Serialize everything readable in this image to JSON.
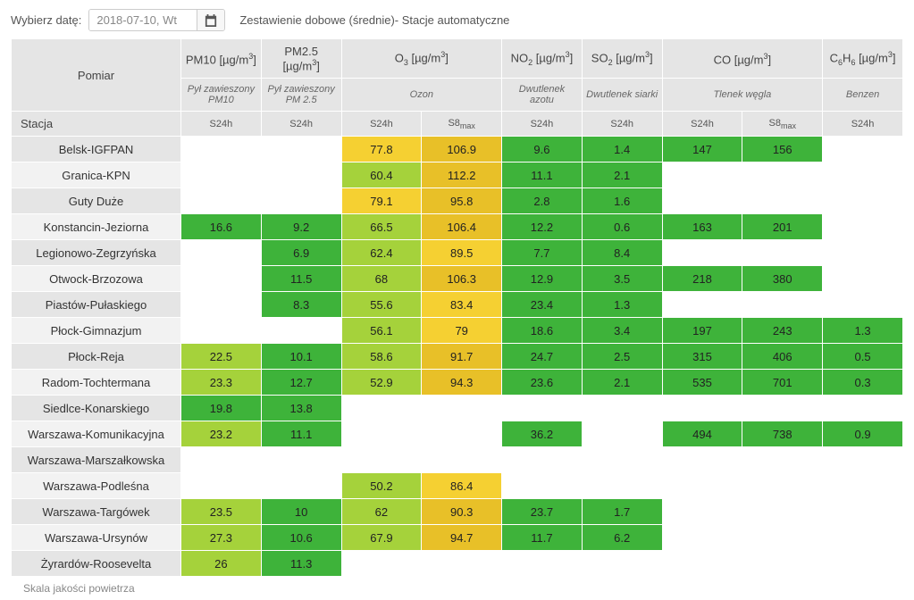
{
  "top": {
    "label": "Wybierz datę:",
    "date_value": "2018-07-10, Wt",
    "title": "Zestawienie dobowe (średnie)- Stacje automatyczne"
  },
  "header": {
    "corner_top": "Pomiar",
    "corner_bottom": "Stacja",
    "cols": [
      {
        "main": "PM10 [µg/m³]",
        "sub": "Pył zawieszony PM10",
        "periods": [
          "S24h"
        ],
        "split": false
      },
      {
        "main": "PM2.5 [µg/m³]",
        "sub": "Pył zawieszony PM 2.5",
        "periods": [
          "S24h"
        ],
        "split": false
      },
      {
        "main": "O₃ [µg/m³]",
        "sub": "Ozon",
        "periods": [
          "S24h",
          "S8max"
        ],
        "split": true
      },
      {
        "main": "NO₂ [µg/m³]",
        "sub": "Dwutlenek azotu",
        "periods": [
          "S24h"
        ],
        "split": false
      },
      {
        "main": "SO₂ [µg/m³]",
        "sub": "Dwutlenek siarki",
        "periods": [
          "S24h"
        ],
        "split": false
      },
      {
        "main": "CO [µg/m³]",
        "sub": "Tlenek węgla",
        "periods": [
          "S24h",
          "S8max"
        ],
        "split": true
      },
      {
        "main": "C₆H₆ [µg/m³]",
        "sub": "Benzen",
        "periods": [
          "S24h"
        ],
        "split": false
      }
    ]
  },
  "colors": {
    "empty": "#ffffff",
    "green_dark": "#3eb33a",
    "green_light": "#a5d23b",
    "yellow": "#f5d032",
    "yellow_dark": "#e8c028",
    "orange": "#e8b830"
  },
  "rows": [
    {
      "station": "Belsk-IGFPAN",
      "cells": [
        {
          "v": "",
          "c": "empty"
        },
        {
          "v": "",
          "c": "empty"
        },
        {
          "v": "77.8",
          "c": "yellow"
        },
        {
          "v": "106.9",
          "c": "yellow_dark"
        },
        {
          "v": "9.6",
          "c": "green_dark"
        },
        {
          "v": "1.4",
          "c": "green_dark"
        },
        {
          "v": "147",
          "c": "green_dark"
        },
        {
          "v": "156",
          "c": "green_dark"
        },
        {
          "v": "",
          "c": "empty"
        }
      ]
    },
    {
      "station": "Granica-KPN",
      "cells": [
        {
          "v": "",
          "c": "empty"
        },
        {
          "v": "",
          "c": "empty"
        },
        {
          "v": "60.4",
          "c": "green_light"
        },
        {
          "v": "112.2",
          "c": "yellow_dark"
        },
        {
          "v": "11.1",
          "c": "green_dark"
        },
        {
          "v": "2.1",
          "c": "green_dark"
        },
        {
          "v": "",
          "c": "empty"
        },
        {
          "v": "",
          "c": "empty"
        },
        {
          "v": "",
          "c": "empty"
        }
      ]
    },
    {
      "station": "Guty Duże",
      "cells": [
        {
          "v": "",
          "c": "empty"
        },
        {
          "v": "",
          "c": "empty"
        },
        {
          "v": "79.1",
          "c": "yellow"
        },
        {
          "v": "95.8",
          "c": "yellow_dark"
        },
        {
          "v": "2.8",
          "c": "green_dark"
        },
        {
          "v": "1.6",
          "c": "green_dark"
        },
        {
          "v": "",
          "c": "empty"
        },
        {
          "v": "",
          "c": "empty"
        },
        {
          "v": "",
          "c": "empty"
        }
      ]
    },
    {
      "station": "Konstancin-Jeziorna",
      "cells": [
        {
          "v": "16.6",
          "c": "green_dark"
        },
        {
          "v": "9.2",
          "c": "green_dark"
        },
        {
          "v": "66.5",
          "c": "green_light"
        },
        {
          "v": "106.4",
          "c": "yellow_dark"
        },
        {
          "v": "12.2",
          "c": "green_dark"
        },
        {
          "v": "0.6",
          "c": "green_dark"
        },
        {
          "v": "163",
          "c": "green_dark"
        },
        {
          "v": "201",
          "c": "green_dark"
        },
        {
          "v": "",
          "c": "empty"
        }
      ]
    },
    {
      "station": "Legionowo-Zegrzyńska",
      "cells": [
        {
          "v": "",
          "c": "empty"
        },
        {
          "v": "6.9",
          "c": "green_dark"
        },
        {
          "v": "62.4",
          "c": "green_light"
        },
        {
          "v": "89.5",
          "c": "yellow"
        },
        {
          "v": "7.7",
          "c": "green_dark"
        },
        {
          "v": "8.4",
          "c": "green_dark"
        },
        {
          "v": "",
          "c": "empty"
        },
        {
          "v": "",
          "c": "empty"
        },
        {
          "v": "",
          "c": "empty"
        }
      ]
    },
    {
      "station": "Otwock-Brzozowa",
      "cells": [
        {
          "v": "",
          "c": "empty"
        },
        {
          "v": "11.5",
          "c": "green_dark"
        },
        {
          "v": "68",
          "c": "green_light"
        },
        {
          "v": "106.3",
          "c": "yellow_dark"
        },
        {
          "v": "12.9",
          "c": "green_dark"
        },
        {
          "v": "3.5",
          "c": "green_dark"
        },
        {
          "v": "218",
          "c": "green_dark"
        },
        {
          "v": "380",
          "c": "green_dark"
        },
        {
          "v": "",
          "c": "empty"
        }
      ]
    },
    {
      "station": "Piastów-Pułaskiego",
      "cells": [
        {
          "v": "",
          "c": "empty"
        },
        {
          "v": "8.3",
          "c": "green_dark"
        },
        {
          "v": "55.6",
          "c": "green_light"
        },
        {
          "v": "83.4",
          "c": "yellow"
        },
        {
          "v": "23.4",
          "c": "green_dark"
        },
        {
          "v": "1.3",
          "c": "green_dark"
        },
        {
          "v": "",
          "c": "empty"
        },
        {
          "v": "",
          "c": "empty"
        },
        {
          "v": "",
          "c": "empty"
        }
      ]
    },
    {
      "station": "Płock-Gimnazjum",
      "cells": [
        {
          "v": "",
          "c": "empty"
        },
        {
          "v": "",
          "c": "empty"
        },
        {
          "v": "56.1",
          "c": "green_light"
        },
        {
          "v": "79",
          "c": "yellow"
        },
        {
          "v": "18.6",
          "c": "green_dark"
        },
        {
          "v": "3.4",
          "c": "green_dark"
        },
        {
          "v": "197",
          "c": "green_dark"
        },
        {
          "v": "243",
          "c": "green_dark"
        },
        {
          "v": "1.3",
          "c": "green_dark"
        }
      ]
    },
    {
      "station": "Płock-Reja",
      "cells": [
        {
          "v": "22.5",
          "c": "green_light"
        },
        {
          "v": "10.1",
          "c": "green_dark"
        },
        {
          "v": "58.6",
          "c": "green_light"
        },
        {
          "v": "91.7",
          "c": "yellow_dark"
        },
        {
          "v": "24.7",
          "c": "green_dark"
        },
        {
          "v": "2.5",
          "c": "green_dark"
        },
        {
          "v": "315",
          "c": "green_dark"
        },
        {
          "v": "406",
          "c": "green_dark"
        },
        {
          "v": "0.5",
          "c": "green_dark"
        }
      ]
    },
    {
      "station": "Radom-Tochtermana",
      "cells": [
        {
          "v": "23.3",
          "c": "green_light"
        },
        {
          "v": "12.7",
          "c": "green_dark"
        },
        {
          "v": "52.9",
          "c": "green_light"
        },
        {
          "v": "94.3",
          "c": "yellow_dark"
        },
        {
          "v": "23.6",
          "c": "green_dark"
        },
        {
          "v": "2.1",
          "c": "green_dark"
        },
        {
          "v": "535",
          "c": "green_dark"
        },
        {
          "v": "701",
          "c": "green_dark"
        },
        {
          "v": "0.3",
          "c": "green_dark"
        }
      ]
    },
    {
      "station": "Siedlce-Konarskiego",
      "cells": [
        {
          "v": "19.8",
          "c": "green_dark"
        },
        {
          "v": "13.8",
          "c": "green_dark"
        },
        {
          "v": "",
          "c": "empty"
        },
        {
          "v": "",
          "c": "empty"
        },
        {
          "v": "",
          "c": "empty"
        },
        {
          "v": "",
          "c": "empty"
        },
        {
          "v": "",
          "c": "empty"
        },
        {
          "v": "",
          "c": "empty"
        },
        {
          "v": "",
          "c": "empty"
        }
      ]
    },
    {
      "station": "Warszawa-Komunikacyjna",
      "cells": [
        {
          "v": "23.2",
          "c": "green_light"
        },
        {
          "v": "11.1",
          "c": "green_dark"
        },
        {
          "v": "",
          "c": "empty"
        },
        {
          "v": "",
          "c": "empty"
        },
        {
          "v": "36.2",
          "c": "green_dark"
        },
        {
          "v": "",
          "c": "empty"
        },
        {
          "v": "494",
          "c": "green_dark"
        },
        {
          "v": "738",
          "c": "green_dark"
        },
        {
          "v": "0.9",
          "c": "green_dark"
        }
      ]
    },
    {
      "station": "Warszawa-Marszałkowska",
      "cells": [
        {
          "v": "",
          "c": "empty"
        },
        {
          "v": "",
          "c": "empty"
        },
        {
          "v": "",
          "c": "empty"
        },
        {
          "v": "",
          "c": "empty"
        },
        {
          "v": "",
          "c": "empty"
        },
        {
          "v": "",
          "c": "empty"
        },
        {
          "v": "",
          "c": "empty"
        },
        {
          "v": "",
          "c": "empty"
        },
        {
          "v": "",
          "c": "empty"
        }
      ]
    },
    {
      "station": "Warszawa-Podleśna",
      "cells": [
        {
          "v": "",
          "c": "empty"
        },
        {
          "v": "",
          "c": "empty"
        },
        {
          "v": "50.2",
          "c": "green_light"
        },
        {
          "v": "86.4",
          "c": "yellow"
        },
        {
          "v": "",
          "c": "empty"
        },
        {
          "v": "",
          "c": "empty"
        },
        {
          "v": "",
          "c": "empty"
        },
        {
          "v": "",
          "c": "empty"
        },
        {
          "v": "",
          "c": "empty"
        }
      ]
    },
    {
      "station": "Warszawa-Targówek",
      "cells": [
        {
          "v": "23.5",
          "c": "green_light"
        },
        {
          "v": "10",
          "c": "green_dark"
        },
        {
          "v": "62",
          "c": "green_light"
        },
        {
          "v": "90.3",
          "c": "yellow_dark"
        },
        {
          "v": "23.7",
          "c": "green_dark"
        },
        {
          "v": "1.7",
          "c": "green_dark"
        },
        {
          "v": "",
          "c": "empty"
        },
        {
          "v": "",
          "c": "empty"
        },
        {
          "v": "",
          "c": "empty"
        }
      ]
    },
    {
      "station": "Warszawa-Ursynów",
      "cells": [
        {
          "v": "27.3",
          "c": "green_light"
        },
        {
          "v": "10.6",
          "c": "green_dark"
        },
        {
          "v": "67.9",
          "c": "green_light"
        },
        {
          "v": "94.7",
          "c": "yellow_dark"
        },
        {
          "v": "11.7",
          "c": "green_dark"
        },
        {
          "v": "6.2",
          "c": "green_dark"
        },
        {
          "v": "",
          "c": "empty"
        },
        {
          "v": "",
          "c": "empty"
        },
        {
          "v": "",
          "c": "empty"
        }
      ]
    },
    {
      "station": "Żyrardów-Roosevelta",
      "cells": [
        {
          "v": "26",
          "c": "green_light"
        },
        {
          "v": "11.3",
          "c": "green_dark"
        },
        {
          "v": "",
          "c": "empty"
        },
        {
          "v": "",
          "c": "empty"
        },
        {
          "v": "",
          "c": "empty"
        },
        {
          "v": "",
          "c": "empty"
        },
        {
          "v": "",
          "c": "empty"
        },
        {
          "v": "",
          "c": "empty"
        },
        {
          "v": "",
          "c": "empty"
        }
      ]
    }
  ],
  "footer": "Skala jakości powietrza"
}
